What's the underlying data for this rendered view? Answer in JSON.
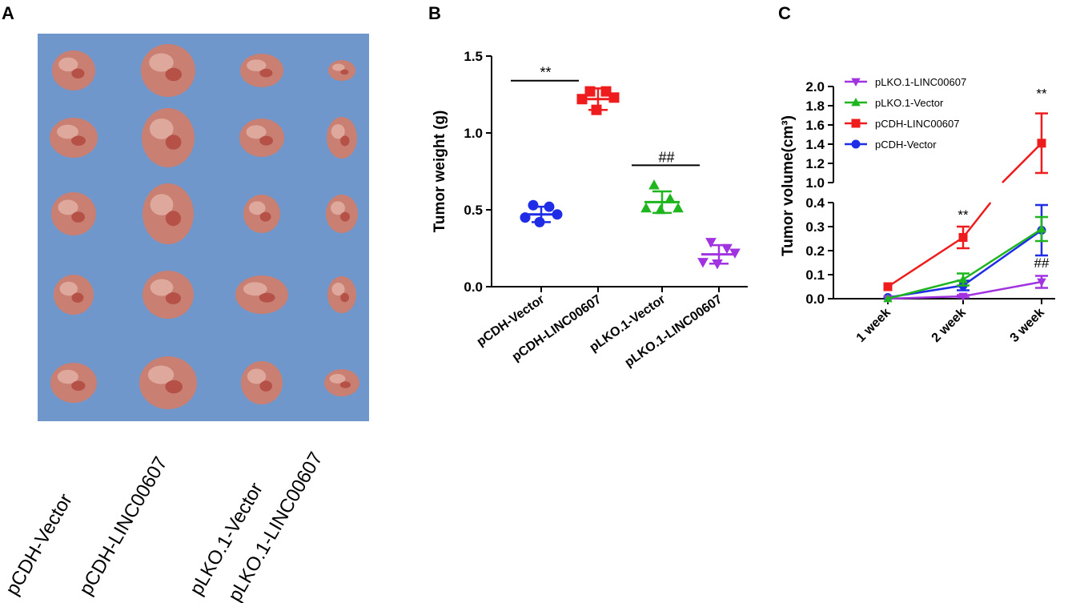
{
  "panels": {
    "a_label": "A",
    "b_label": "B",
    "c_label": "C"
  },
  "photo": {
    "columns": [
      "pCDH-Vector",
      "pCDH-LINC00607",
      "pLKO.1-Vector",
      "pLKO.1-LINC00607"
    ],
    "background_color": "#6f97cb",
    "tumor_color": "#c97f72"
  },
  "colors": {
    "pCDH-Vector": "#1f2de6",
    "pCDH-LINC00607": "#ee1c1c",
    "pLKO.1-Vector": "#1fb51f",
    "pLKO.1-LINC00607": "#a133e0"
  },
  "chart_data": [
    {
      "id": "B",
      "type": "scatter",
      "title": "",
      "ylabel": "Tumor weight (g)",
      "xlabel": "",
      "ylim": [
        0,
        1.5
      ],
      "yticks": [
        "0.0",
        "0.5",
        "1.0",
        "1.5"
      ],
      "categories": [
        "pCDH-Vector",
        "pCDH-LINC00607",
        "pLKO.1-Vector",
        "pLKO.1-LINC00607"
      ],
      "series": [
        {
          "name": "pCDH-Vector",
          "marker": "circle",
          "points": [
            0.53,
            0.52,
            0.47,
            0.45,
            0.42
          ],
          "mean": 0.47,
          "sd": 0.05
        },
        {
          "name": "pCDH-LINC00607",
          "marker": "square",
          "points": [
            1.27,
            1.27,
            1.23,
            1.22,
            1.15
          ],
          "mean": 1.22,
          "sd": 0.07
        },
        {
          "name": "pLKO.1-Vector",
          "marker": "triangle",
          "points": [
            0.66,
            0.57,
            0.51,
            0.51,
            0.5
          ],
          "mean": 0.55,
          "sd": 0.07
        },
        {
          "name": "pLKO.1-LINC00607",
          "marker": "triangle-down",
          "points": [
            0.29,
            0.25,
            0.22,
            0.16,
            0.15
          ],
          "mean": 0.21,
          "sd": 0.06
        }
      ],
      "annotations": [
        {
          "text": "**",
          "from": "pCDH-Vector",
          "to": "pCDH-LINC00607",
          "y": 1.34
        },
        {
          "text": "##",
          "from": "pLKO.1-Vector",
          "to": "pLKO.1-LINC00607",
          "y": 0.79
        }
      ]
    },
    {
      "id": "C",
      "type": "line",
      "title": "",
      "ylabel": "Tumor volume(cm³)",
      "xlabel": "",
      "categories": [
        "1 week",
        "2 week",
        "3 week"
      ],
      "ylim_lower": [
        0,
        0.4
      ],
      "ylim_upper": [
        1.0,
        2.0
      ],
      "yticks_lower": [
        "0.0",
        "0.1",
        "0.2",
        "0.3",
        "0.4"
      ],
      "yticks_upper": [
        "1.0",
        "1.2",
        "1.4",
        "1.6",
        "1.8",
        "2.0"
      ],
      "legend_position": "top-left",
      "series": [
        {
          "name": "pLKO.1-LINC00607",
          "marker": "triangle-down",
          "values": [
            0.0,
            0.01,
            0.07
          ],
          "err": [
            0.0,
            0.005,
            0.025
          ]
        },
        {
          "name": "pLKO.1-Vector",
          "marker": "triangle",
          "values": [
            0.0,
            0.08,
            0.29
          ],
          "err": [
            0.0,
            0.025,
            0.05
          ]
        },
        {
          "name": "pCDH-LINC00607",
          "marker": "square",
          "values": [
            0.05,
            0.255,
            1.41
          ],
          "err": [
            0.0,
            0.045,
            0.31
          ]
        },
        {
          "name": "pCDH-Vector",
          "marker": "circle",
          "values": [
            0.005,
            0.055,
            0.285
          ],
          "err": [
            0.0,
            0.02,
            0.105
          ]
        }
      ],
      "annotations": [
        {
          "text": "**",
          "category": "2 week",
          "y": 0.33
        },
        {
          "text": "**",
          "category": "3 week",
          "y": 1.88
        },
        {
          "text": "##",
          "category": "3 week",
          "y": 0.13
        }
      ]
    }
  ]
}
